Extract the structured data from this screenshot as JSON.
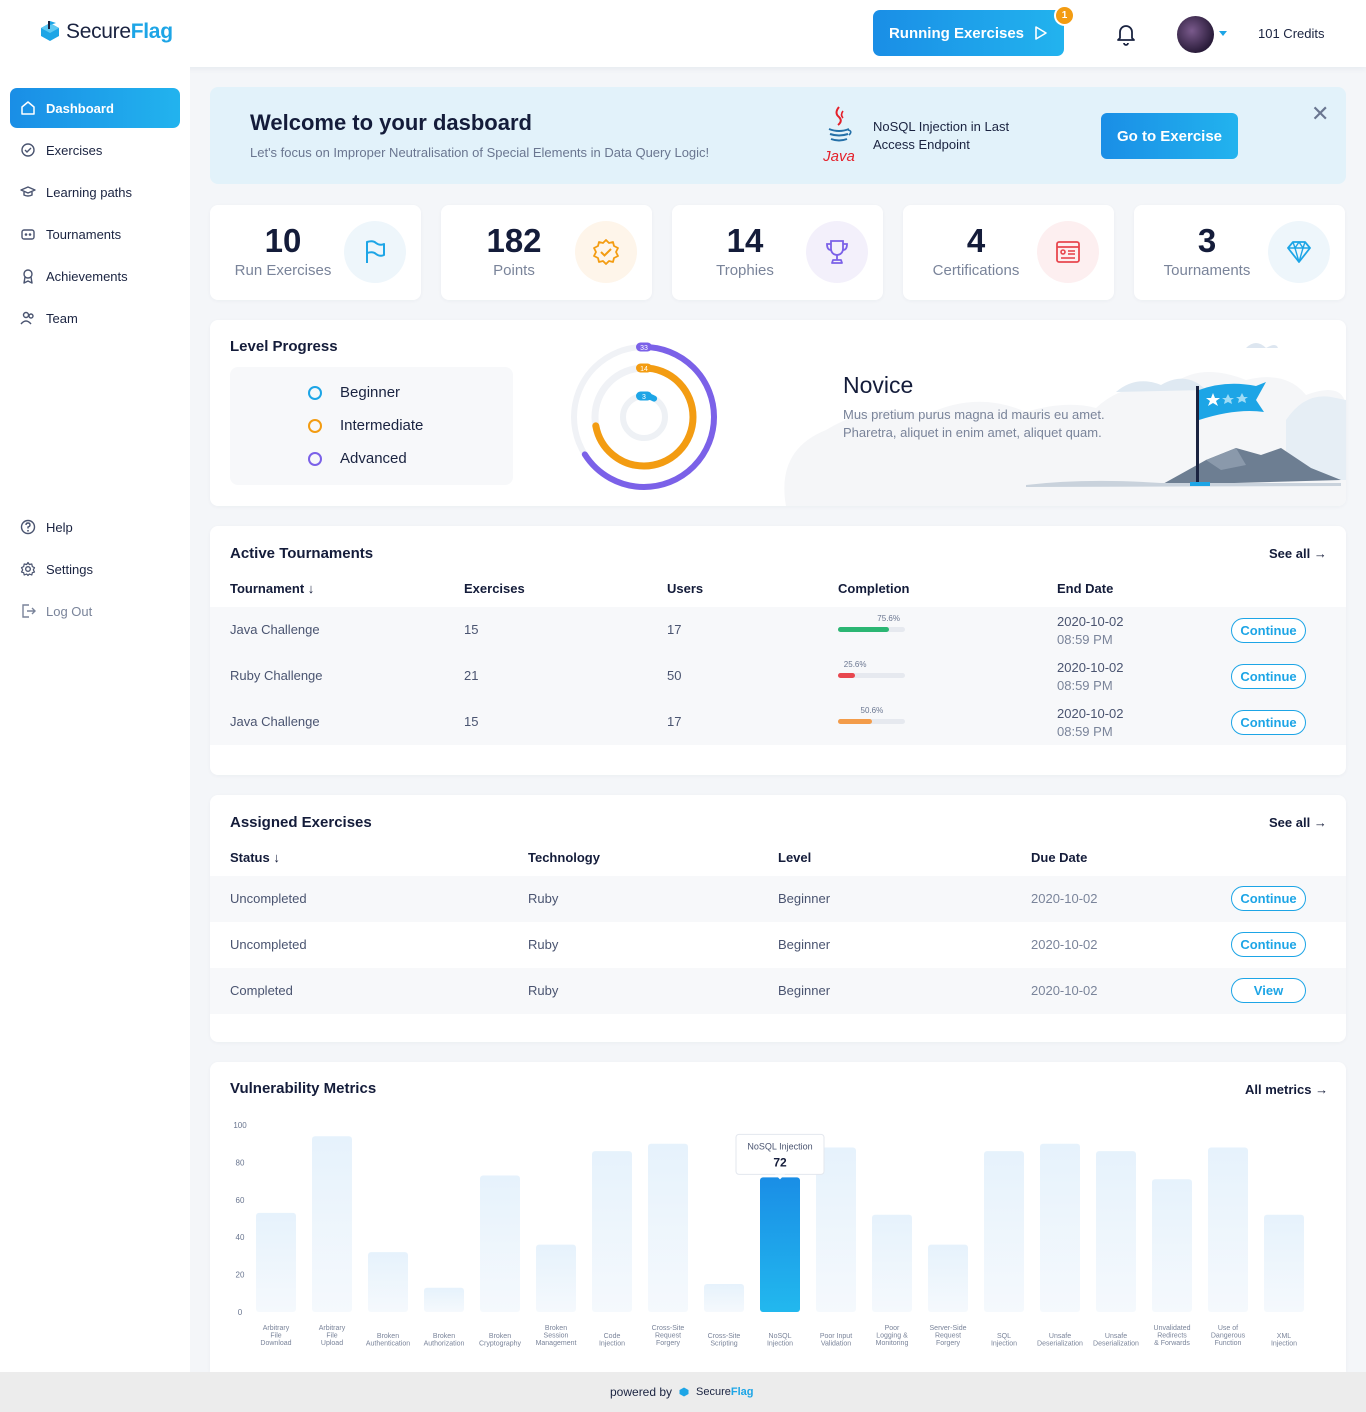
{
  "header": {
    "logo_secure": "Secure",
    "logo_flag": "Flag",
    "running_label": "Running Exercises",
    "running_count": "1",
    "credits": "101 Credits"
  },
  "sidebar": {
    "items": [
      {
        "label": "Dashboard"
      },
      {
        "label": "Exercises"
      },
      {
        "label": "Learning paths"
      },
      {
        "label": "Tournaments"
      },
      {
        "label": "Achievements"
      },
      {
        "label": "Team"
      }
    ],
    "bottom": [
      {
        "label": "Help"
      },
      {
        "label": "Settings"
      },
      {
        "label": "Log Out"
      }
    ]
  },
  "welcome": {
    "title": "Welcome to your dasboard",
    "subtitle": "Let's focus on Improper Neutralisation of Special Elements in Data Query Logic!",
    "tech": "Java",
    "exercise": "NoSQL Injection in Last Access Endpoint",
    "button": "Go to Exercise"
  },
  "stats": [
    {
      "value": "10",
      "label": "Run Exercises",
      "icon": "flag-icon",
      "bg": "#eef6fb",
      "color": "#1da5e6"
    },
    {
      "value": "182",
      "label": "Points",
      "icon": "badge-check-icon",
      "bg": "#fef5ea",
      "color": "#f39c12"
    },
    {
      "value": "14",
      "label": "Trophies",
      "icon": "trophy-icon",
      "bg": "#f3f0fb",
      "color": "#7b61e8"
    },
    {
      "value": "4",
      "label": "Certifications",
      "icon": "certificate-icon",
      "bg": "#fdeff0",
      "color": "#e8474f"
    },
    {
      "value": "3",
      "label": "Tournaments",
      "icon": "diamond-icon",
      "bg": "#eef6fb",
      "color": "#1da5e6"
    }
  ],
  "level": {
    "title": "Level Progress",
    "legend": [
      {
        "label": "Beginner",
        "color": "#1da5e6"
      },
      {
        "label": "Intermediate",
        "color": "#f39c12"
      },
      {
        "label": "Advanced",
        "color": "#7b61e8"
      }
    ],
    "rings": [
      {
        "label": "33",
        "value": 0.66,
        "color": "#7b61e8"
      },
      {
        "label": "14",
        "value": 0.72,
        "color": "#f39c12"
      },
      {
        "label": "3",
        "value": 0.08,
        "color": "#1da5e6"
      }
    ],
    "rank": "Novice",
    "description": "Mus pretium purus magna id mauris eu amet. Pharetra, aliquet in enim amet, aliquet quam."
  },
  "tournaments": {
    "title": "Active Tournaments",
    "see_all": "See all",
    "headers": {
      "name": "Tournament",
      "exercises": "Exercises",
      "users": "Users",
      "completion": "Completion",
      "end": "End Date"
    },
    "rows": [
      {
        "name": "Java Challenge",
        "exercises": "15",
        "users": "17",
        "completion": 0.756,
        "completion_label": "75.6%",
        "color": "#2bb673",
        "date": "2020-10-02",
        "time": "08:59 PM",
        "action": "Continue"
      },
      {
        "name": "Ruby Challenge",
        "exercises": "21",
        "users": "50",
        "completion": 0.256,
        "completion_label": "25.6%",
        "color": "#e8474f",
        "date": "2020-10-02",
        "time": "08:59 PM",
        "action": "Continue"
      },
      {
        "name": "Java Challenge",
        "exercises": "15",
        "users": "17",
        "completion": 0.506,
        "completion_label": "50.6%",
        "color": "#f39c4a",
        "date": "2020-10-02",
        "time": "08:59 PM",
        "action": "Continue"
      }
    ]
  },
  "assigned": {
    "title": "Assigned Exercises",
    "see_all": "See all",
    "headers": {
      "status": "Status",
      "tech": "Technology",
      "level": "Level",
      "due": "Due Date"
    },
    "rows": [
      {
        "status": "Uncompleted",
        "tech": "Ruby",
        "level": "Beginner",
        "due": "2020-10-02",
        "action": "Continue"
      },
      {
        "status": "Uncompleted",
        "tech": "Ruby",
        "level": "Beginner",
        "due": "2020-10-02",
        "action": "Continue"
      },
      {
        "status": "Completed",
        "tech": "Ruby",
        "level": "Beginner",
        "due": "2020-10-02",
        "action": "View"
      }
    ]
  },
  "metrics": {
    "title": "Vulnerability Metrics",
    "all_metrics": "All metrics",
    "highlight_index": 9,
    "tooltip_label": "NoSQL Injection",
    "tooltip_value": "72"
  },
  "chart_data": {
    "type": "bar",
    "title": "",
    "xlabel": "",
    "ylabel": "",
    "ylim": [
      0,
      100
    ],
    "yticks": [
      "100",
      "80",
      "60",
      "40",
      "20",
      "0"
    ],
    "categories": [
      "Arbitrary File Download",
      "Arbitrary File Upload",
      "Broken Authentication",
      "Broken Authorization",
      "Broken Cryptography",
      "Broken Session Management",
      "Code Injection",
      "Cross-Site Request Forgery",
      "Cross-Site Scripting",
      "NoSQL Injection",
      "Poor Input Validation",
      "Poor Logging & Monitoring",
      "Server-Side Request Forgery",
      "SQL Injection",
      "Unsafe Deserialization",
      "Unsafe Deserialization",
      "Unvalidated Redirects & Forwards",
      "Use of Dangerous Function",
      "XML Injection"
    ],
    "values": [
      53,
      94,
      32,
      13,
      73,
      36,
      86,
      90,
      15,
      72,
      88,
      52,
      36,
      86,
      90,
      86,
      71,
      88,
      52
    ]
  },
  "footer": {
    "text": "powered by",
    "logo_secure": "Secure",
    "logo_flag": "Flag"
  }
}
